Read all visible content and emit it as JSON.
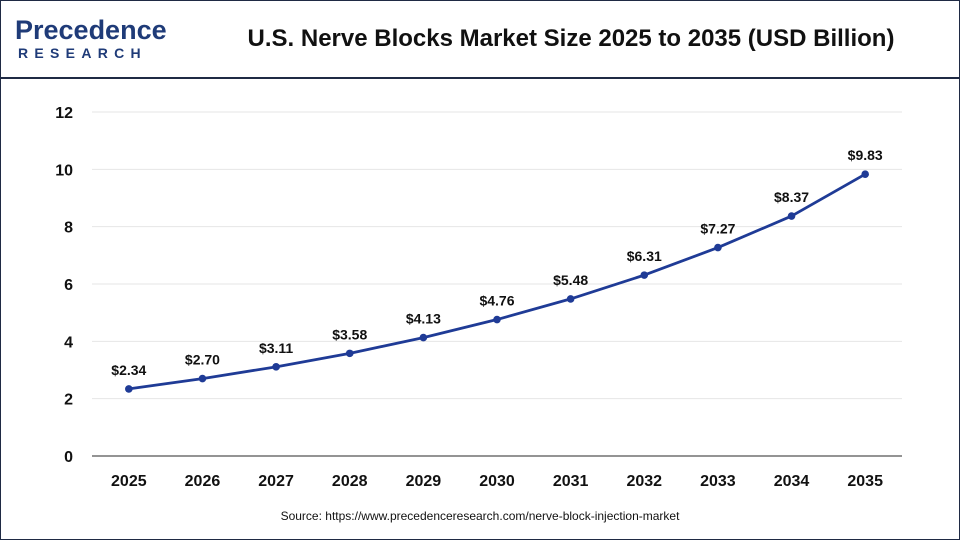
{
  "brand": {
    "logo_main": "Precedence",
    "logo_sub": "RESEARCH"
  },
  "title": "U.S. Nerve Blocks Market Size 2025 to 2035 (USD Billion)",
  "source": "Source: https://www.precedenceresearch.com/nerve-block-injection-market",
  "colors": {
    "line": "#1f3b96",
    "brand": "#1f3b78",
    "grid": "#e6e6e6",
    "axis": "#555555"
  },
  "chart_data": {
    "type": "line",
    "title": "U.S. Nerve Blocks Market Size 2025 to 2035 (USD Billion)",
    "xlabel": "",
    "ylabel": "",
    "categories": [
      "2025",
      "2026",
      "2027",
      "2028",
      "2029",
      "2030",
      "2031",
      "2032",
      "2033",
      "2034",
      "2035"
    ],
    "series": [
      {
        "values": [
          2.34,
          2.7,
          3.11,
          3.58,
          4.13,
          4.76,
          5.48,
          6.31,
          7.27,
          8.37,
          9.83
        ],
        "labels": [
          "$2.34",
          "$2.70",
          "$3.11",
          "$3.58",
          "$4.13",
          "$4.76",
          "$5.48",
          "$6.31",
          "$7.27",
          "$8.37",
          "$9.83"
        ]
      }
    ],
    "ylim": [
      0,
      12
    ],
    "yticks": [
      "0",
      "2",
      "4",
      "6",
      "8",
      "10",
      "12"
    ],
    "grid": true,
    "legend": "none"
  }
}
